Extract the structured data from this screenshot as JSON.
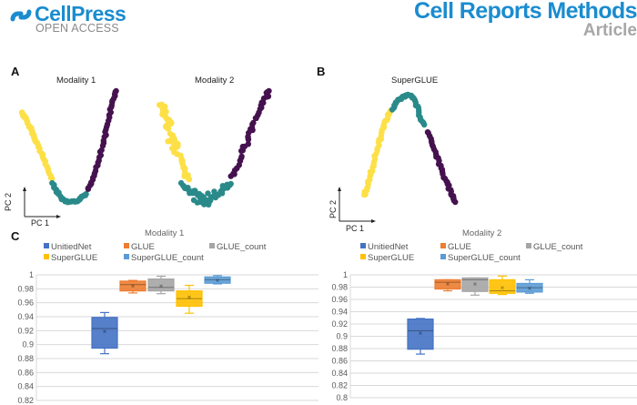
{
  "header": {
    "publisher": "CellPress",
    "open_access": "OPEN ACCESS",
    "journal": "Cell Reports Methods",
    "article_type": "Article",
    "brand_color": "#1a8ccf"
  },
  "panels": {
    "a": {
      "letter": "A",
      "titles": [
        "Modality 1",
        "Modality 2"
      ]
    },
    "b": {
      "letter": "B",
      "title": "SuperGLUE"
    },
    "c": {
      "letter": "C"
    },
    "pc_x": "PC 1",
    "pc_y": "PC 2"
  },
  "cluster_colors": {
    "yellow": "#fde047",
    "teal": "#2a8a8a",
    "purple": "#45124f"
  },
  "chart_data": [
    {
      "type": "scatter",
      "title": "Modality 1",
      "xlabel": "PC 1",
      "ylabel": "PC 2",
      "description": "V-shaped trajectory: yellow cluster on left arm, teal at bottom, purple on right arm",
      "series": [
        {
          "name": "yellow",
          "color": "#fde047",
          "points": [
            [
              0.02,
              0.82
            ],
            [
              0.05,
              0.78
            ],
            [
              0.08,
              0.72
            ],
            [
              0.12,
              0.66
            ],
            [
              0.15,
              0.6
            ],
            [
              0.18,
              0.54
            ],
            [
              0.22,
              0.46
            ],
            [
              0.25,
              0.4
            ],
            [
              0.28,
              0.33
            ],
            [
              0.32,
              0.26
            ]
          ]
        },
        {
          "name": "teal",
          "color": "#2a8a8a",
          "points": [
            [
              0.33,
              0.22
            ],
            [
              0.37,
              0.15
            ],
            [
              0.42,
              0.09
            ],
            [
              0.47,
              0.06
            ],
            [
              0.52,
              0.06
            ],
            [
              0.57,
              0.07
            ],
            [
              0.62,
              0.1
            ],
            [
              0.66,
              0.13
            ]
          ]
        },
        {
          "name": "purple",
          "color": "#45124f",
          "points": [
            [
              0.68,
              0.17
            ],
            [
              0.72,
              0.25
            ],
            [
              0.76,
              0.35
            ],
            [
              0.8,
              0.46
            ],
            [
              0.84,
              0.58
            ],
            [
              0.87,
              0.7
            ],
            [
              0.9,
              0.82
            ],
            [
              0.93,
              0.92
            ],
            [
              0.96,
              1.0
            ]
          ]
        }
      ]
    },
    {
      "type": "scatter",
      "title": "Modality 2",
      "xlabel": "PC 1",
      "ylabel": "PC 2",
      "description": "V-shaped trajectory with broader spread: yellow upper-left, teal bottom, purple right arm",
      "series": [
        {
          "name": "yellow",
          "color": "#fde047",
          "points": [
            [
              0.04,
              0.88
            ],
            [
              0.07,
              0.84
            ],
            [
              0.05,
              0.8
            ],
            [
              0.09,
              0.78
            ],
            [
              0.12,
              0.74
            ],
            [
              0.08,
              0.7
            ],
            [
              0.15,
              0.62
            ],
            [
              0.11,
              0.58
            ],
            [
              0.18,
              0.56
            ],
            [
              0.14,
              0.52
            ],
            [
              0.2,
              0.45
            ],
            [
              0.22,
              0.38
            ],
            [
              0.24,
              0.3
            ],
            [
              0.27,
              0.26
            ]
          ]
        },
        {
          "name": "teal",
          "color": "#2a8a8a",
          "points": [
            [
              0.22,
              0.22
            ],
            [
              0.26,
              0.17
            ],
            [
              0.3,
              0.13
            ],
            [
              0.34,
              0.15
            ],
            [
              0.38,
              0.1
            ],
            [
              0.42,
              0.06
            ],
            [
              0.46,
              0.08
            ],
            [
              0.5,
              0.12
            ],
            [
              0.54,
              0.14
            ],
            [
              0.58,
              0.18
            ],
            [
              0.62,
              0.22
            ],
            [
              0.32,
              0.08
            ],
            [
              0.44,
              0.04
            ]
          ]
        },
        {
          "name": "purple",
          "color": "#45124f",
          "points": [
            [
              0.64,
              0.28
            ],
            [
              0.68,
              0.36
            ],
            [
              0.72,
              0.46
            ],
            [
              0.76,
              0.56
            ],
            [
              0.8,
              0.66
            ],
            [
              0.84,
              0.76
            ],
            [
              0.88,
              0.86
            ],
            [
              0.92,
              0.94
            ],
            [
              0.95,
              1.0
            ]
          ]
        }
      ]
    },
    {
      "type": "scatter",
      "title": "SuperGLUE",
      "xlabel": "PC 1",
      "ylabel": "PC 2",
      "description": "Inverted-V trajectory: yellow left arm rising, teal at peak, purple right arm descending",
      "series": [
        {
          "name": "yellow",
          "color": "#fde047",
          "points": [
            [
              0.02,
              0.1
            ],
            [
              0.05,
              0.16
            ],
            [
              0.07,
              0.24
            ],
            [
              0.1,
              0.34
            ],
            [
              0.13,
              0.44
            ],
            [
              0.17,
              0.56
            ],
            [
              0.2,
              0.66
            ],
            [
              0.22,
              0.72
            ],
            [
              0.26,
              0.8
            ],
            [
              0.28,
              0.84
            ]
          ]
        },
        {
          "name": "teal",
          "color": "#2a8a8a",
          "points": [
            [
              0.3,
              0.86
            ],
            [
              0.34,
              0.92
            ],
            [
              0.4,
              0.96
            ],
            [
              0.46,
              0.98
            ],
            [
              0.52,
              0.96
            ],
            [
              0.55,
              0.88
            ],
            [
              0.58,
              0.78
            ],
            [
              0.62,
              0.72
            ]
          ]
        },
        {
          "name": "purple",
          "color": "#45124f",
          "points": [
            [
              0.65,
              0.66
            ],
            [
              0.7,
              0.56
            ],
            [
              0.74,
              0.46
            ],
            [
              0.78,
              0.36
            ],
            [
              0.82,
              0.26
            ],
            [
              0.86,
              0.18
            ],
            [
              0.9,
              0.1
            ],
            [
              0.93,
              0.04
            ]
          ]
        }
      ]
    },
    {
      "type": "box",
      "title": "Modality 1",
      "ylim": [
        0.82,
        1.0
      ],
      "yticks": [
        "0.82",
        "0.84",
        "0.86",
        "0.88",
        "0.9",
        "0.92",
        "0.94",
        "0.96",
        "0.98",
        "1"
      ],
      "ytick_values": [
        0.82,
        0.84,
        0.86,
        0.88,
        0.9,
        0.92,
        0.94,
        0.96,
        0.98,
        1.0
      ],
      "legend": [
        "UnitiedNet",
        "GLUE",
        "GLUE_count",
        "SuperGLUE",
        "SuperGLUE_count"
      ],
      "series": [
        {
          "name": "UnitiedNet",
          "color": "#4472c4",
          "min": 0.887,
          "q1": 0.895,
          "median": 0.923,
          "mean": 0.919,
          "q3": 0.939,
          "max": 0.946
        },
        {
          "name": "GLUE",
          "color": "#ed7d31",
          "min": 0.974,
          "q1": 0.977,
          "median": 0.986,
          "mean": 0.984,
          "q3": 0.991,
          "max": 0.992
        },
        {
          "name": "GLUE_count",
          "color": "#a5a5a5",
          "min": 0.973,
          "q1": 0.977,
          "median": 0.982,
          "mean": 0.984,
          "q3": 0.994,
          "max": 0.998
        },
        {
          "name": "SuperGLUE",
          "color": "#ffc000",
          "min": 0.945,
          "q1": 0.955,
          "median": 0.966,
          "mean": 0.968,
          "q3": 0.977,
          "max": 0.985
        },
        {
          "name": "SuperGLUE_count",
          "color": "#5b9bd5",
          "min": 0.987,
          "q1": 0.988,
          "median": 0.993,
          "mean": 0.992,
          "q3": 0.997,
          "max": 0.999
        }
      ]
    },
    {
      "type": "box",
      "title": "Modality 2",
      "ylim": [
        0.8,
        1.0
      ],
      "yticks": [
        "0.8",
        "0.82",
        "0.84",
        "0.86",
        "0.88",
        "0.9",
        "0.92",
        "0.94",
        "0.96",
        "0.98",
        "1"
      ],
      "ytick_values": [
        0.8,
        0.82,
        0.84,
        0.86,
        0.88,
        0.9,
        0.92,
        0.94,
        0.96,
        0.98,
        1.0
      ],
      "legend": [
        "UnitiedNet",
        "GLUE",
        "GLUE_count",
        "SuperGLUE",
        "SuperGLUE_count"
      ],
      "series": [
        {
          "name": "UnitiedNet",
          "color": "#4472c4",
          "min": 0.871,
          "q1": 0.879,
          "median": 0.909,
          "mean": 0.905,
          "q3": 0.928,
          "max": 0.929
        },
        {
          "name": "GLUE",
          "color": "#ed7d31",
          "min": 0.974,
          "q1": 0.977,
          "median": 0.988,
          "mean": 0.985,
          "q3": 0.992,
          "max": 0.992
        },
        {
          "name": "GLUE_count",
          "color": "#a5a5a5",
          "min": 0.967,
          "q1": 0.973,
          "median": 0.992,
          "mean": 0.985,
          "q3": 0.995,
          "max": 0.995
        },
        {
          "name": "SuperGLUE",
          "color": "#ffc000",
          "min": 0.968,
          "q1": 0.97,
          "median": 0.974,
          "mean": 0.979,
          "q3": 0.992,
          "max": 0.998
        },
        {
          "name": "SuperGLUE_count",
          "color": "#5b9bd5",
          "min": 0.97,
          "q1": 0.972,
          "median": 0.979,
          "mean": 0.978,
          "q3": 0.986,
          "max": 0.992
        }
      ]
    }
  ]
}
